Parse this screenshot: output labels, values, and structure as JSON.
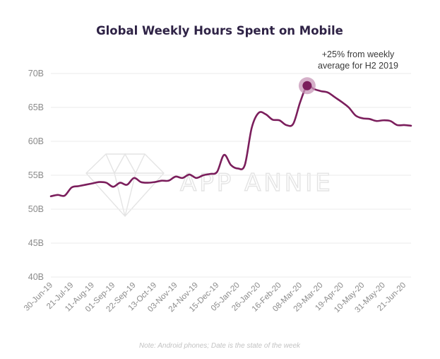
{
  "chart_data": {
    "type": "line",
    "title": "Global Weekly Hours Spent on Mobile",
    "xlabel": "",
    "ylabel": "",
    "ylim": [
      40,
      70
    ],
    "y_unit": "B",
    "y_ticks": [
      "40B",
      "45B",
      "50B",
      "55B",
      "60B",
      "65B",
      "70B"
    ],
    "grid": true,
    "legend": "none",
    "x_tick_labels": [
      "30-Jun-19",
      "21-Jul-19",
      "11-Aug-19",
      "01-Sep-19",
      "22-Sep-19",
      "13-Oct-19",
      "03-Nov-19",
      "24-Nov-19",
      "15-Dec-19",
      "05-Jan-20",
      "26-Jan-20",
      "16-Feb-20",
      "08-Mar-20",
      "29-Mar-20",
      "19-Apr-20",
      "10-May-20",
      "31-May-20",
      "21-Jun-20"
    ],
    "series": [
      {
        "color": "#7b1e5c",
        "x": [
          "30-Jun-19",
          "07-Jul-19",
          "14-Jul-19",
          "21-Jul-19",
          "28-Jul-19",
          "04-Aug-19",
          "11-Aug-19",
          "18-Aug-19",
          "25-Aug-19",
          "01-Sep-19",
          "08-Sep-19",
          "15-Sep-19",
          "22-Sep-19",
          "29-Sep-19",
          "06-Oct-19",
          "13-Oct-19",
          "20-Oct-19",
          "27-Oct-19",
          "03-Nov-19",
          "10-Nov-19",
          "17-Nov-19",
          "24-Nov-19",
          "01-Dec-19",
          "08-Dec-19",
          "15-Dec-19",
          "22-Dec-19",
          "29-Dec-19",
          "05-Jan-20",
          "12-Jan-20",
          "19-Jan-20",
          "26-Jan-20",
          "02-Feb-20",
          "09-Feb-20",
          "16-Feb-20",
          "23-Feb-20",
          "01-Mar-20",
          "08-Mar-20",
          "15-Mar-20",
          "22-Mar-20",
          "29-Mar-20",
          "05-Apr-20",
          "12-Apr-20",
          "19-Apr-20",
          "26-Apr-20",
          "03-May-20",
          "10-May-20",
          "17-May-20",
          "24-May-20",
          "31-May-20",
          "07-Jun-20",
          "14-Jun-20",
          "21-Jun-20",
          "28-Jun-20"
        ],
        "values": [
          51.9,
          52.1,
          52.0,
          53.2,
          53.4,
          53.6,
          53.8,
          54.0,
          53.9,
          53.3,
          53.9,
          53.6,
          54.6,
          54.0,
          53.9,
          54.0,
          54.2,
          54.2,
          54.8,
          54.6,
          55.1,
          54.6,
          55.0,
          55.2,
          55.5,
          58.0,
          56.5,
          56.0,
          56.5,
          62.0,
          64.2,
          64.0,
          63.2,
          63.1,
          62.4,
          62.6,
          65.8,
          68.2,
          67.7,
          67.4,
          67.2,
          66.5,
          65.8,
          65.0,
          63.8,
          63.4,
          63.3,
          63.0,
          63.1,
          63.0,
          62.4,
          62.4,
          62.3
        ]
      }
    ],
    "highlight": {
      "x": "15-Mar-20",
      "y": 68.2,
      "color": "#7b1e5c",
      "halo_color": "#c795b7",
      "annotation_lines": [
        "+25% from weekly",
        "average for H2 2019"
      ]
    },
    "footnote": "Note: Android phones; Date is the state of the week",
    "watermark": {
      "text": "APP ANNIE",
      "icon": "diamond-logo-icon",
      "color": "#e4e4e4"
    },
    "colors": {
      "line": "#7b1e5c",
      "grid": "#ebebeb",
      "title": "#2f2346",
      "tick": "#8b8b8b"
    }
  }
}
